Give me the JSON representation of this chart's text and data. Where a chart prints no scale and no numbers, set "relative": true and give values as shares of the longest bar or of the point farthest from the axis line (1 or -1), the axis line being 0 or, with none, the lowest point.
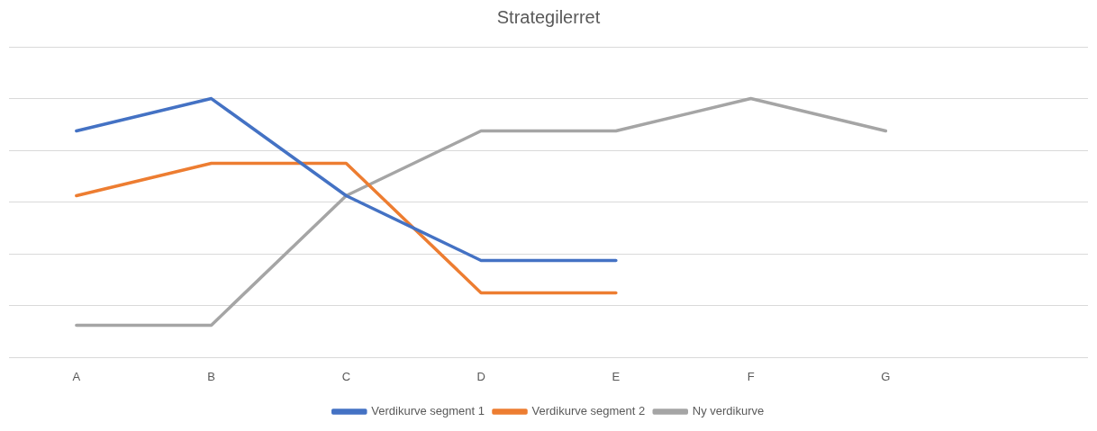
{
  "chart_data": {
    "type": "line",
    "title": "Strategilerret",
    "relative": true,
    "grid": "y",
    "legend": "bottom",
    "marker": "none",
    "line_style": "solid",
    "categories": [
      "A",
      "B",
      "C",
      "D",
      "E",
      "F",
      "G",
      null
    ],
    "series": [
      {
        "name": "Verdikurve segment 1",
        "color": "#4472c4",
        "values": [
          0.875,
          1,
          0.625,
          0.375,
          0.375,
          null,
          null,
          null
        ]
      },
      {
        "name": "Verdikurve segment 2",
        "color": "#ed7d31",
        "values": [
          0.625,
          0.75,
          0.75,
          0.25,
          0.25,
          null,
          null,
          null
        ]
      },
      {
        "name": "Ny verdikurve",
        "color": "#a5a5a5",
        "values": [
          0.125,
          0.125,
          0.625,
          0.875,
          0.875,
          1,
          0.875,
          null
        ]
      }
    ]
  }
}
